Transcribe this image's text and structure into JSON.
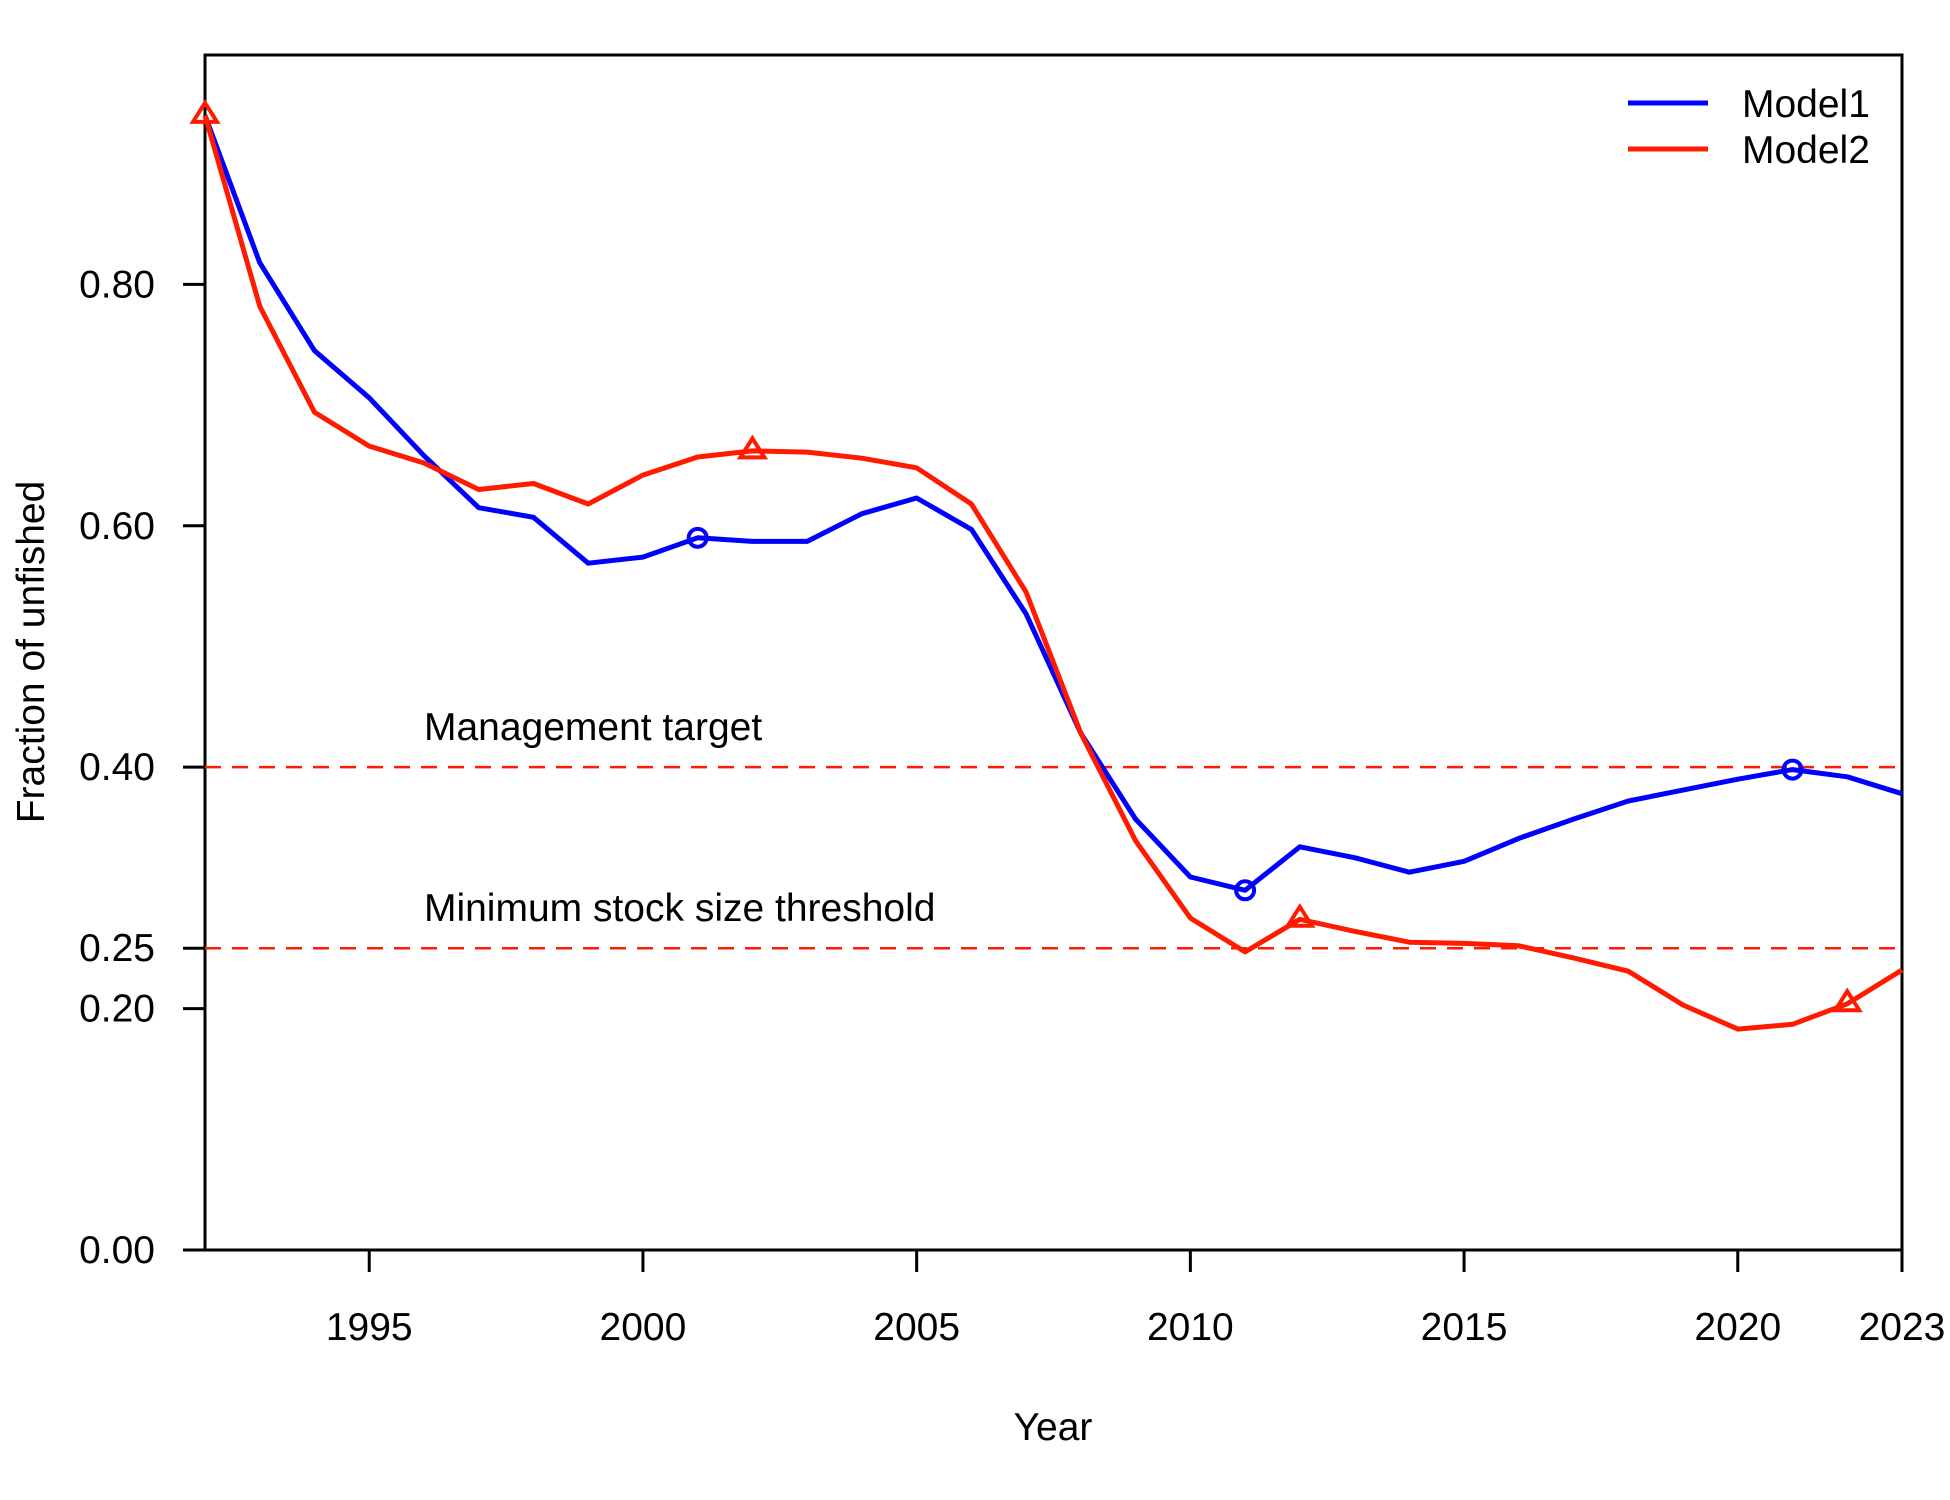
{
  "chart_data": {
    "type": "line",
    "xlabel": "Year",
    "ylabel": "Fraction of unfished",
    "xlim": [
      1992,
      2023
    ],
    "ylim": [
      0,
      0.99
    ],
    "x_ticks": [
      1995,
      2000,
      2005,
      2010,
      2015,
      2020,
      2023
    ],
    "y_ticks": [
      0.0,
      0.2,
      0.25,
      0.4,
      0.6,
      0.8
    ],
    "y_tick_labels": [
      "0.00",
      "0.20",
      "0.25",
      "0.40",
      "0.60",
      "0.80"
    ],
    "x": [
      1992,
      1993,
      1994,
      1995,
      1996,
      1997,
      1998,
      1999,
      2000,
      2001,
      2002,
      2003,
      2004,
      2005,
      2006,
      2007,
      2008,
      2009,
      2010,
      2011,
      2012,
      2013,
      2014,
      2015,
      2016,
      2017,
      2018,
      2019,
      2020,
      2021,
      2022,
      2023
    ],
    "series": [
      {
        "name": "Model1",
        "color": "#0000ff",
        "marker": "circle",
        "values": [
          0.94,
          0.818,
          0.745,
          0.706,
          0.658,
          0.615,
          0.607,
          0.569,
          0.574,
          0.59,
          0.587,
          0.587,
          0.61,
          0.623,
          0.597,
          0.527,
          0.428,
          0.357,
          0.309,
          0.298,
          0.334,
          0.325,
          0.313,
          0.322,
          0.341,
          0.357,
          0.372,
          0.381,
          0.39,
          0.398,
          0.392,
          0.378
        ],
        "marker_x": [
          2001,
          2011,
          2021
        ]
      },
      {
        "name": "Model2",
        "color": "#ff1a00",
        "marker": "triangle",
        "values": [
          0.94,
          0.782,
          0.694,
          0.666,
          0.652,
          0.63,
          0.635,
          0.618,
          0.642,
          0.657,
          0.662,
          0.661,
          0.656,
          0.648,
          0.618,
          0.545,
          0.428,
          0.339,
          0.275,
          0.247,
          0.274,
          0.264,
          0.255,
          0.254,
          0.252,
          0.242,
          0.231,
          0.203,
          0.183,
          0.187,
          0.204,
          0.232
        ],
        "marker_x": [
          1992,
          2002,
          2012,
          2022
        ]
      }
    ],
    "reference_lines": [
      {
        "y": 0.4,
        "label": "Management target",
        "label_x": 1996,
        "color": "#ff1a00",
        "style": "dashed"
      },
      {
        "y": 0.25,
        "label": "Minimum stock size threshold",
        "label_x": 1996,
        "color": "#ff1a00",
        "style": "dashed"
      }
    ],
    "legend": {
      "placement": "top-right",
      "entries": [
        "Model1",
        "Model2"
      ]
    },
    "grid": false
  }
}
